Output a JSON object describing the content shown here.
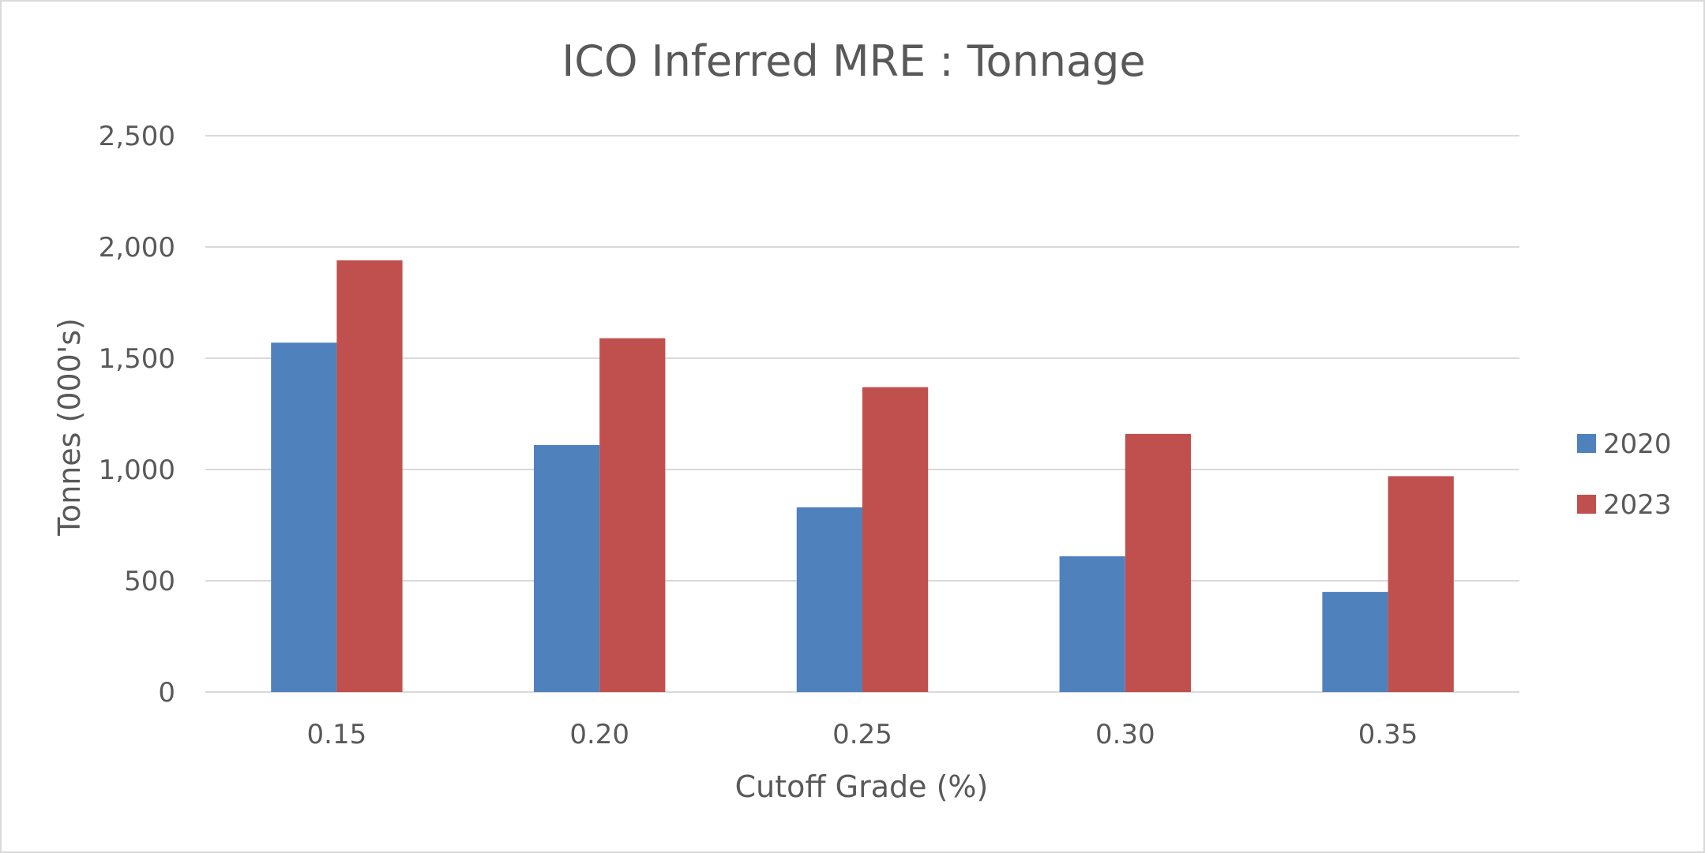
{
  "chart_data": {
    "type": "bar",
    "title": "ICO Inferred MRE : Tonnage",
    "xlabel": "Cutoff Grade (%)",
    "ylabel": "Tonnes  (000's)",
    "categories": [
      "0.15",
      "0.20",
      "0.25",
      "0.30",
      "0.35"
    ],
    "y_ticks": [
      "0",
      "500",
      "1,000",
      "1,500",
      "2,000",
      "2,500"
    ],
    "ylim": [
      0,
      2500
    ],
    "grid": true,
    "legend_position": "right",
    "series": [
      {
        "name": "2020",
        "color": "#4f81bd",
        "values": [
          1570,
          1110,
          830,
          610,
          450
        ]
      },
      {
        "name": "2023",
        "color": "#c0504d",
        "values": [
          1940,
          1590,
          1370,
          1160,
          970
        ]
      }
    ]
  }
}
